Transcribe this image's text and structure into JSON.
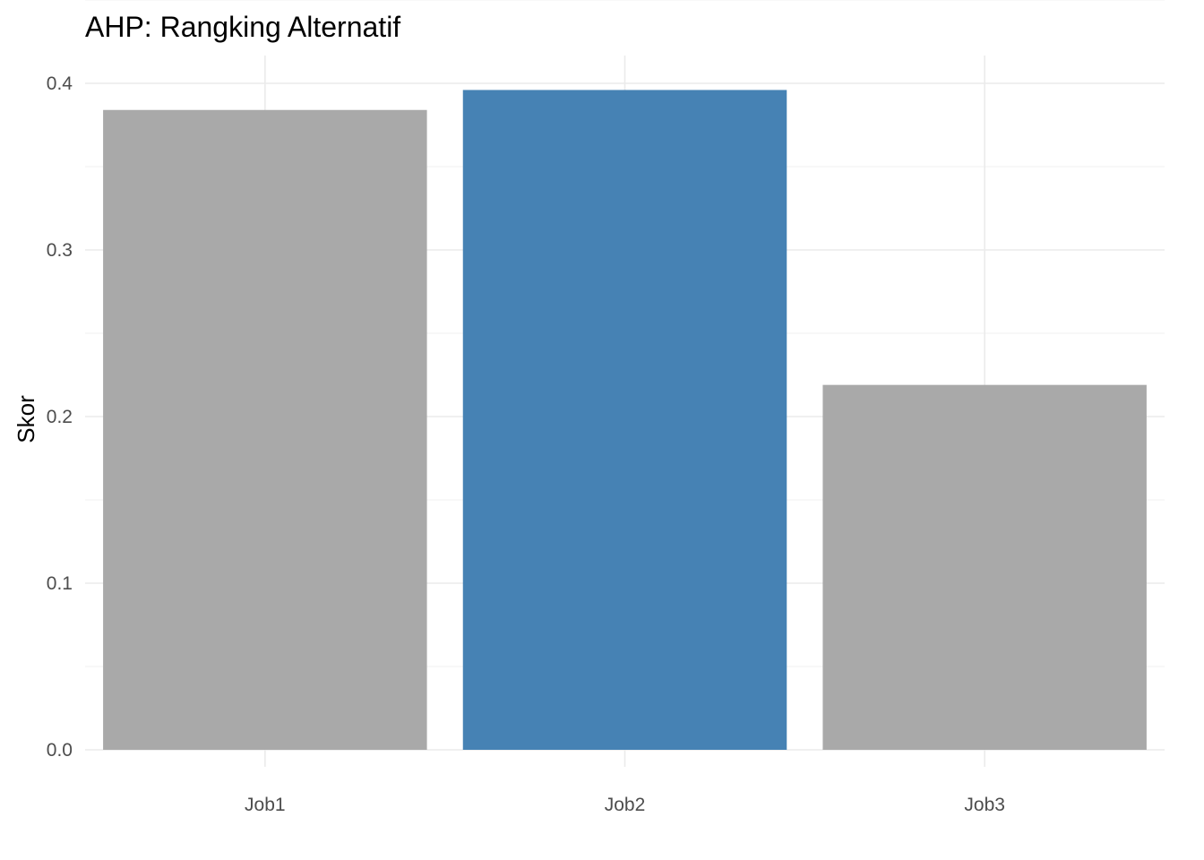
{
  "chart_data": {
    "type": "bar",
    "title": "AHP: Rangking Alternatif",
    "xlabel": "",
    "ylabel": "Skor",
    "categories": [
      "Job1",
      "Job2",
      "Job3"
    ],
    "values": [
      0.384,
      0.396,
      0.219
    ],
    "highlight_category": "Job2",
    "colors": {
      "default_bar": "#a9a9a9",
      "highlight_bar": "#4682b4",
      "grid_major": "#ebebeb",
      "grid_minor": "#f2f2f2",
      "tick_text": "#4d4d4d",
      "title_text": "#000000"
    },
    "ylim": [
      0,
      0.4
    ],
    "y_ticks": [
      0.0,
      0.1,
      0.2,
      0.3,
      0.4
    ],
    "y_tick_labels": [
      "0.0",
      "0.1",
      "0.2",
      "0.3",
      "0.4"
    ],
    "grid": true,
    "legend": "none"
  }
}
